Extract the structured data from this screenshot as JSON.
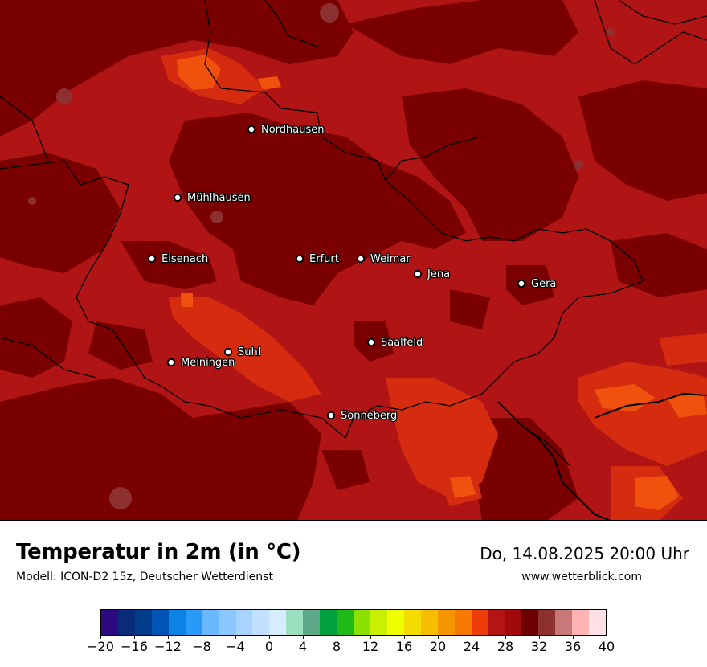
{
  "map": {
    "colors": {
      "deep_maroon": "#7a0000",
      "crimson": "#b01414",
      "red_orange": "#d52c10",
      "orange": "#f0520d",
      "brownish": "#8c3030",
      "border": "#000000"
    },
    "cities": [
      {
        "id": "nordhausen",
        "name": "Nordhausen"
      },
      {
        "id": "muehlhausen",
        "name": "Mühlhausen"
      },
      {
        "id": "eisenach",
        "name": "Eisenach"
      },
      {
        "id": "erfurt",
        "name": "Erfurt"
      },
      {
        "id": "weimar",
        "name": "Weimar"
      },
      {
        "id": "jena",
        "name": "Jena"
      },
      {
        "id": "gera",
        "name": "Gera"
      },
      {
        "id": "saalfeld",
        "name": "Saalfeld"
      },
      {
        "id": "suhl",
        "name": "Suhl"
      },
      {
        "id": "meiningen",
        "name": "Meiningen"
      },
      {
        "id": "sonneberg",
        "name": "Sonneberg"
      }
    ]
  },
  "footer": {
    "title": "Temperatur in 2m (in °C)",
    "model": "Modell: ICON-D2 15z, Deutscher Wetterdienst",
    "valid_time": "Do, 14.08.2025 20:00 Uhr",
    "website": "www.wetterblick.com"
  },
  "legend": {
    "min": -20,
    "max": 40,
    "colors": [
      "#2d0a7f",
      "#0a2a7a",
      "#003c8a",
      "#0054b4",
      "#0a82e6",
      "#2a9af8",
      "#6ab8ff",
      "#8cc6ff",
      "#a6d4ff",
      "#c2e0ff",
      "#d6ecff",
      "#9ae0c0",
      "#5ea88a",
      "#00a03c",
      "#1eb914",
      "#8ce000",
      "#c8f000",
      "#f0ff00",
      "#f5dc00",
      "#f5be00",
      "#f59600",
      "#f57800",
      "#eb3c0a",
      "#b41414",
      "#a00a0a",
      "#6e0000",
      "#8c3030",
      "#c87878",
      "#ffb4b4",
      "#ffe0e6"
    ],
    "tick_labels": [
      "−20",
      "−16",
      "−12",
      "−8",
      "−4",
      "0",
      "4",
      "8",
      "12",
      "16",
      "20",
      "24",
      "28",
      "32",
      "36",
      "40"
    ]
  }
}
